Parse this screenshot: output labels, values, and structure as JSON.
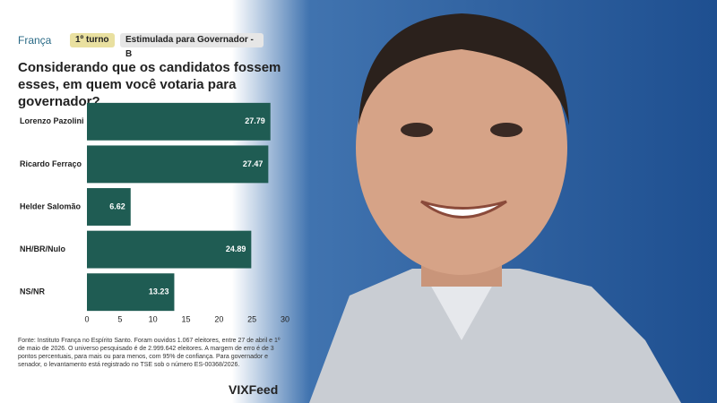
{
  "header": {
    "logo": "França",
    "round": "1º turno",
    "tag": "Estimulada para Governador - B"
  },
  "chart_data": {
    "type": "bar",
    "orientation": "horizontal",
    "title": "Considerando que os candidatos fossem esses, em quem você votaria para governador?",
    "categories": [
      "Lorenzo Pazolini",
      "Ricardo Ferraço",
      "Helder Salomão",
      "NH/BR/Nulo",
      "NS/NR"
    ],
    "values": [
      27.79,
      27.47,
      6.62,
      24.89,
      13.23
    ],
    "color": "#1f5c53",
    "xlim": [
      0,
      30
    ],
    "xticks": [
      0,
      5,
      10,
      15,
      20,
      25,
      30
    ],
    "grid": false
  },
  "footer": {
    "source": "Fonte: Instituto França no Espírito Santo. Foram ouvidos 1.067 eleitores, entre 27 de abril e 1º de maio de 2026. O universo pesquisado é de 2.999.642 eleitores. A margem de erro é de 3 pontos percentuais, para mais ou para menos, com 95% de confiança. Para governador e senador, o levantamento está registrado no TSE sob o número ES-00368/2026.",
    "brand": "VIXFeed"
  }
}
